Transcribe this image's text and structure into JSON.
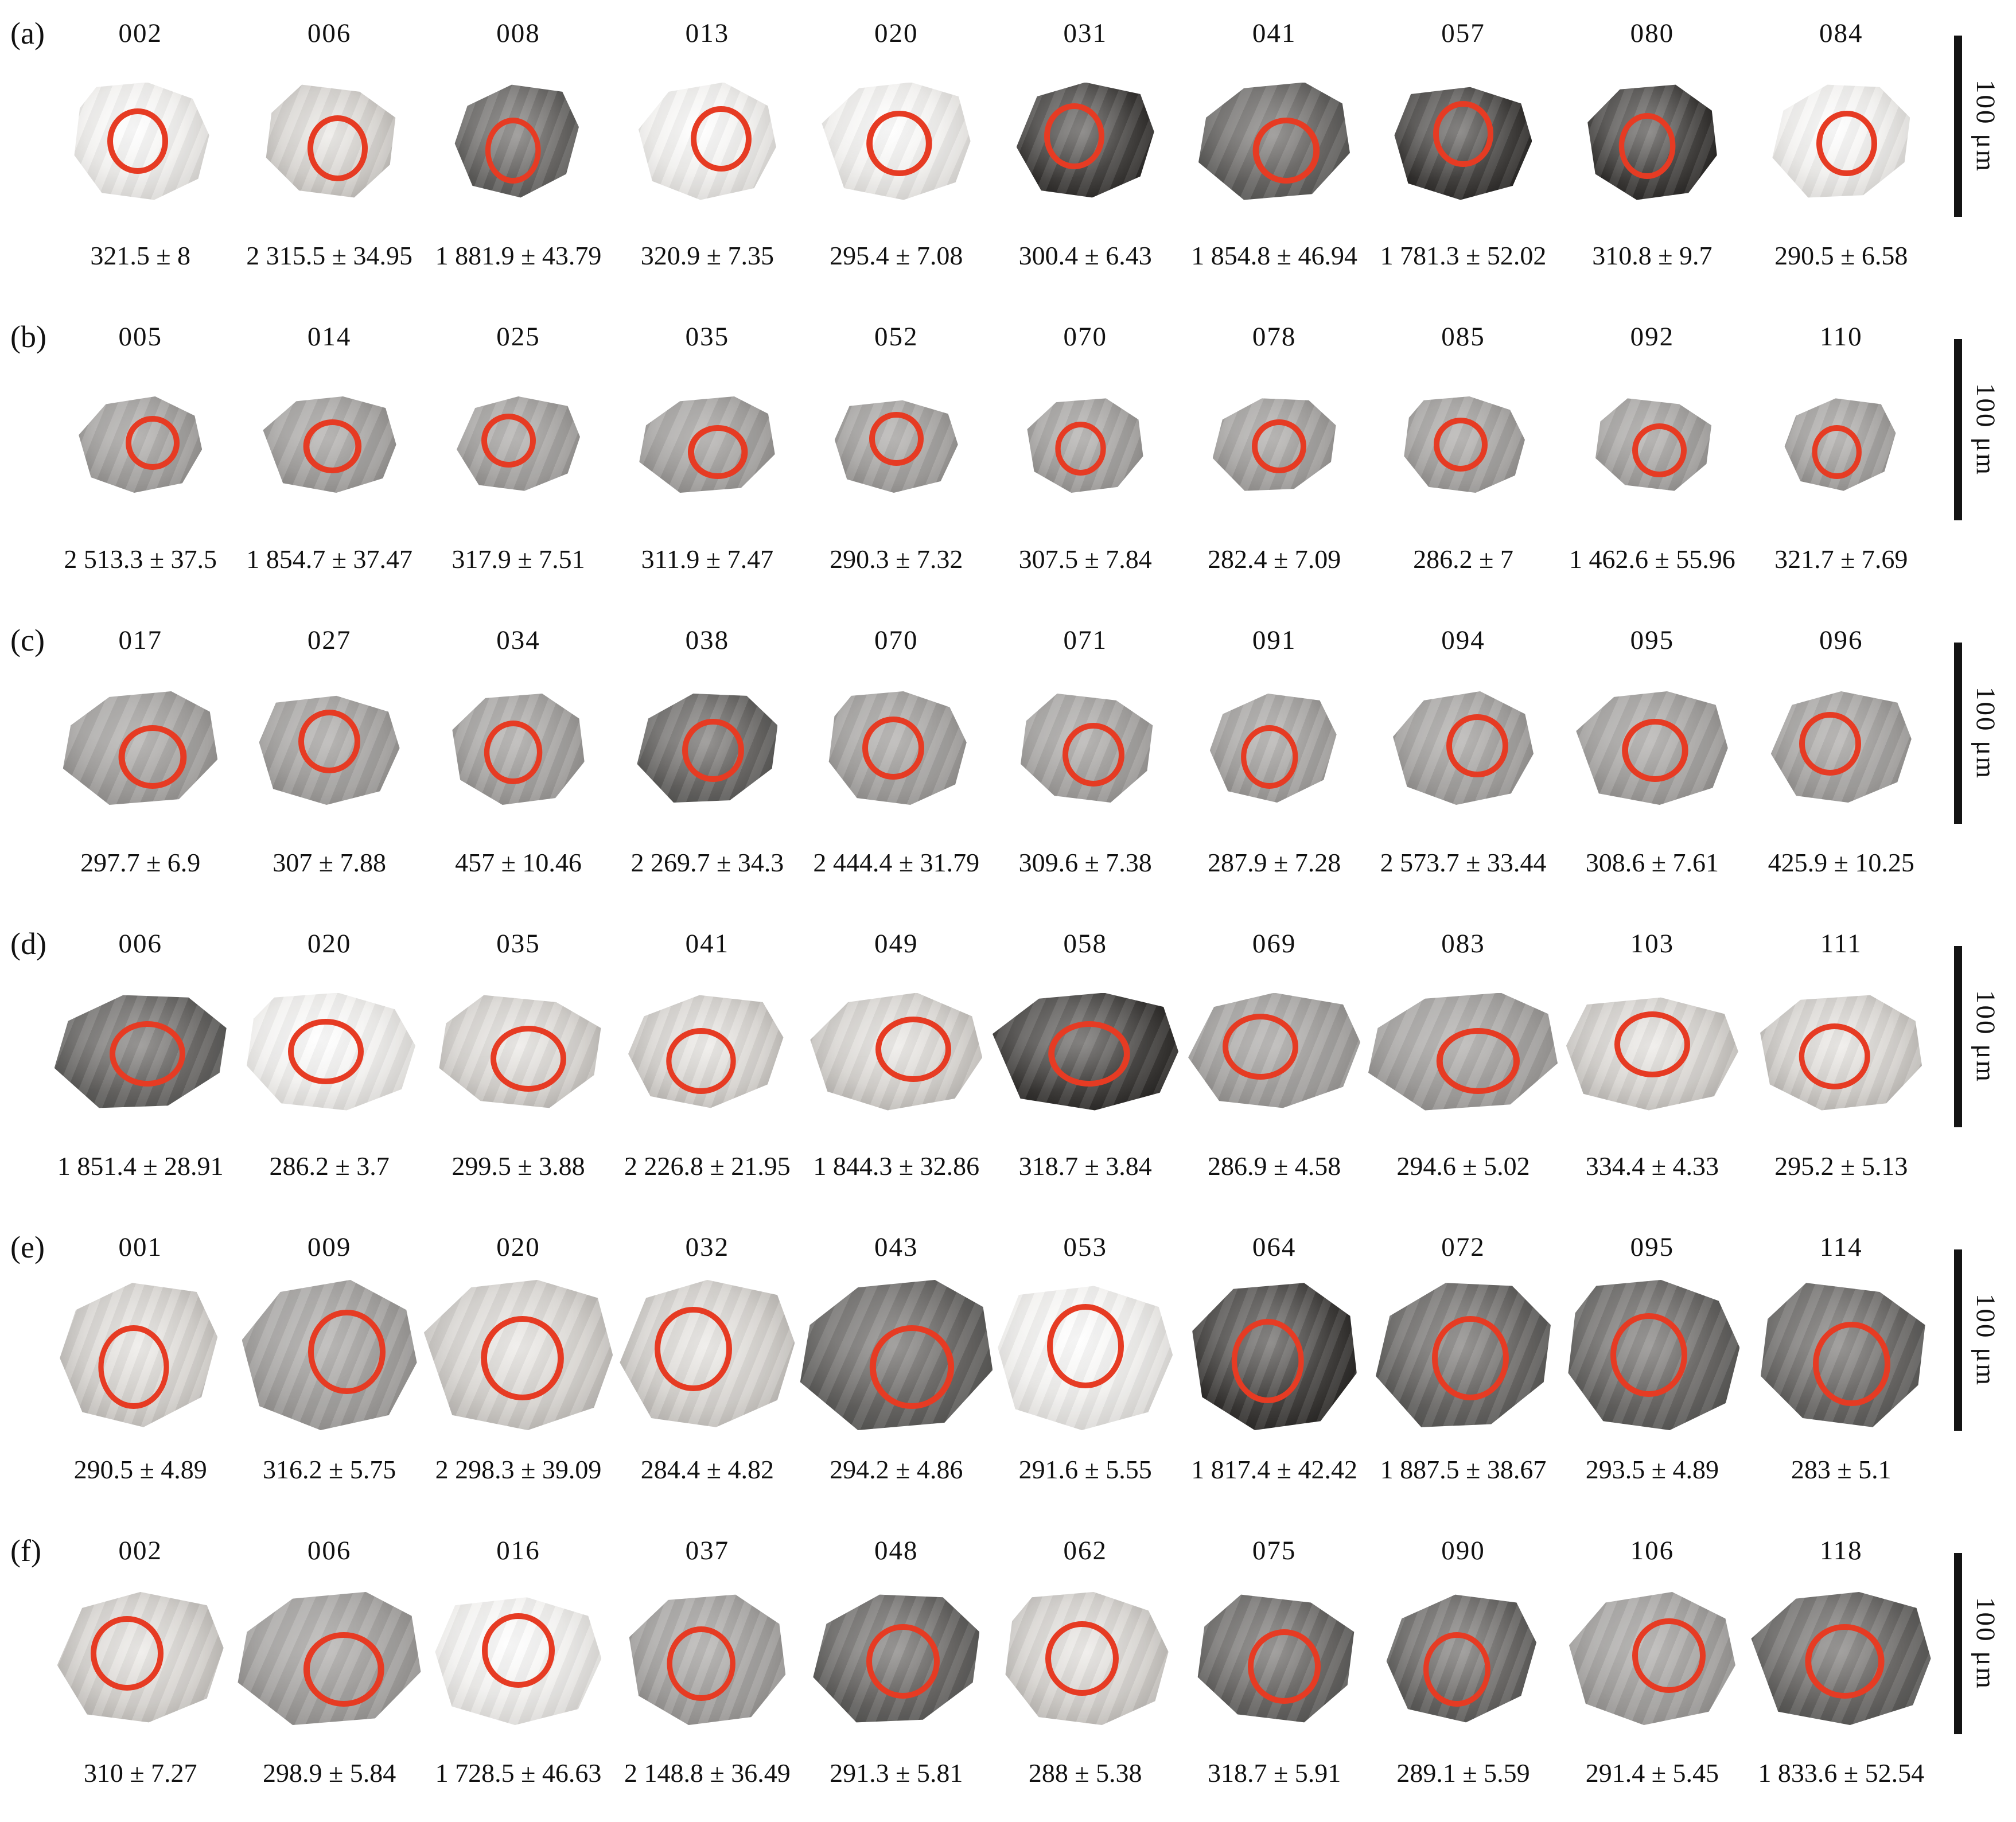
{
  "figure_type": "zircon cathodoluminescence images with U-Pb ages",
  "colors": {
    "analysis_circle": "#e63b23",
    "scale_bar": "#141414",
    "background": "#ffffff",
    "text": "#111111"
  },
  "scale_label": "100 μm",
  "rows": [
    {
      "key": "a",
      "letter": "(a)",
      "grains": [
        {
          "id": "002",
          "age": "321.5 ± 8",
          "tone": "white"
        },
        {
          "id": "006",
          "age": "2 315.5 ± 34.95",
          "tone": "light"
        },
        {
          "id": "008",
          "age": "1 881.9 ± 43.79",
          "tone": "dark"
        },
        {
          "id": "013",
          "age": "320.9 ± 7.35",
          "tone": "white"
        },
        {
          "id": "020",
          "age": "295.4 ± 7.08",
          "tone": "white"
        },
        {
          "id": "031",
          "age": "300.4 ± 6.43",
          "tone": "black"
        },
        {
          "id": "041",
          "age": "1 854.8 ± 46.94",
          "tone": "dark"
        },
        {
          "id": "057",
          "age": "1 781.3 ± 52.02",
          "tone": "black"
        },
        {
          "id": "080",
          "age": "310.8 ± 9.7",
          "tone": "black"
        },
        {
          "id": "084",
          "age": "290.5 ± 6.58",
          "tone": "white"
        }
      ]
    },
    {
      "key": "b",
      "letter": "(b)",
      "grains": [
        {
          "id": "005",
          "age": "2 513.3 ± 37.5",
          "tone": "gray"
        },
        {
          "id": "014",
          "age": "1 854.7 ± 37.47",
          "tone": "gray"
        },
        {
          "id": "025",
          "age": "317.9 ± 7.51",
          "tone": "gray"
        },
        {
          "id": "035",
          "age": "311.9 ± 7.47",
          "tone": "gray"
        },
        {
          "id": "052",
          "age": "290.3 ± 7.32",
          "tone": "gray"
        },
        {
          "id": "070",
          "age": "307.5 ± 7.84",
          "tone": "gray"
        },
        {
          "id": "078",
          "age": "282.4 ± 7.09",
          "tone": "gray"
        },
        {
          "id": "085",
          "age": "286.2 ± 7",
          "tone": "gray"
        },
        {
          "id": "092",
          "age": "1 462.6 ± 55.96",
          "tone": "gray"
        },
        {
          "id": "110",
          "age": "321.7 ± 7.69",
          "tone": "gray"
        }
      ]
    },
    {
      "key": "c",
      "letter": "(c)",
      "grains": [
        {
          "id": "017",
          "age": "297.7 ± 6.9",
          "tone": "gray"
        },
        {
          "id": "027",
          "age": "307 ± 7.88",
          "tone": "gray"
        },
        {
          "id": "034",
          "age": "457 ± 10.46",
          "tone": "gray"
        },
        {
          "id": "038",
          "age": "2 269.7 ± 34.3",
          "tone": "dark"
        },
        {
          "id": "070",
          "age": "2 444.4 ± 31.79",
          "tone": "gray"
        },
        {
          "id": "071",
          "age": "309.6 ± 7.38",
          "tone": "gray"
        },
        {
          "id": "091",
          "age": "287.9 ± 7.28",
          "tone": "gray"
        },
        {
          "id": "094",
          "age": "2 573.7 ± 33.44",
          "tone": "gray"
        },
        {
          "id": "095",
          "age": "308.6 ± 7.61",
          "tone": "gray"
        },
        {
          "id": "096",
          "age": "425.9 ± 10.25",
          "tone": "gray"
        }
      ]
    },
    {
      "key": "d",
      "letter": "(d)",
      "grains": [
        {
          "id": "006",
          "age": "1 851.4 ± 28.91",
          "tone": "dark"
        },
        {
          "id": "020",
          "age": "286.2 ± 3.7",
          "tone": "white"
        },
        {
          "id": "035",
          "age": "299.5 ± 3.88",
          "tone": "light"
        },
        {
          "id": "041",
          "age": "2 226.8 ± 21.95",
          "tone": "light"
        },
        {
          "id": "049",
          "age": "1 844.3 ± 32.86",
          "tone": "light"
        },
        {
          "id": "058",
          "age": "318.7 ± 3.84",
          "tone": "black"
        },
        {
          "id": "069",
          "age": "286.9 ± 4.58",
          "tone": "gray"
        },
        {
          "id": "083",
          "age": "294.6 ± 5.02",
          "tone": "gray"
        },
        {
          "id": "103",
          "age": "334.4 ± 4.33",
          "tone": "light"
        },
        {
          "id": "111",
          "age": "295.2 ± 5.13",
          "tone": "light"
        }
      ]
    },
    {
      "key": "e",
      "letter": "(e)",
      "grains": [
        {
          "id": "001",
          "age": "290.5 ± 4.89",
          "tone": "light"
        },
        {
          "id": "009",
          "age": "316.2 ± 5.75",
          "tone": "gray"
        },
        {
          "id": "020",
          "age": "2 298.3 ± 39.09",
          "tone": "light"
        },
        {
          "id": "032",
          "age": "284.4 ± 4.82",
          "tone": "light"
        },
        {
          "id": "043",
          "age": "294.2 ± 4.86",
          "tone": "dark"
        },
        {
          "id": "053",
          "age": "291.6 ± 5.55",
          "tone": "white"
        },
        {
          "id": "064",
          "age": "1 817.4 ± 42.42",
          "tone": "black"
        },
        {
          "id": "072",
          "age": "1 887.5 ± 38.67",
          "tone": "dark"
        },
        {
          "id": "095",
          "age": "293.5 ± 4.89",
          "tone": "dark"
        },
        {
          "id": "114",
          "age": "283 ± 5.1",
          "tone": "dark"
        }
      ]
    },
    {
      "key": "f",
      "letter": "(f)",
      "grains": [
        {
          "id": "002",
          "age": "310 ± 7.27",
          "tone": "light"
        },
        {
          "id": "006",
          "age": "298.9 ± 5.84",
          "tone": "gray"
        },
        {
          "id": "016",
          "age": "1 728.5 ± 46.63",
          "tone": "white"
        },
        {
          "id": "037",
          "age": "2 148.8 ± 36.49",
          "tone": "gray"
        },
        {
          "id": "048",
          "age": "291.3 ± 5.81",
          "tone": "dark"
        },
        {
          "id": "062",
          "age": "288 ± 5.38",
          "tone": "light"
        },
        {
          "id": "075",
          "age": "318.7 ± 5.91",
          "tone": "dark"
        },
        {
          "id": "090",
          "age": "289.1 ± 5.59",
          "tone": "dark"
        },
        {
          "id": "106",
          "age": "291.4 ± 5.45",
          "tone": "gray"
        },
        {
          "id": "118",
          "age": "1 833.6 ± 52.54",
          "tone": "dark"
        }
      ]
    }
  ]
}
